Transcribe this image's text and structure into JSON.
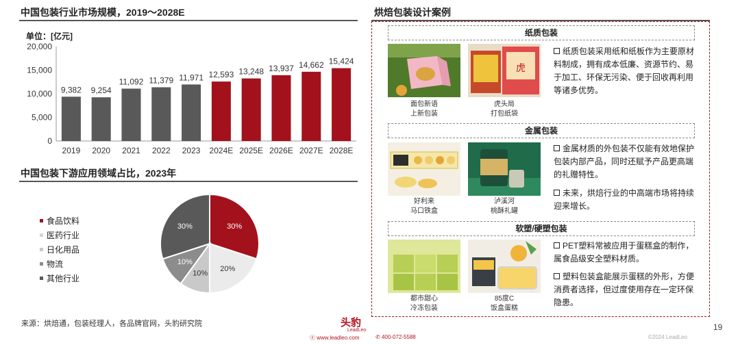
{
  "bar_section": {
    "title": "中国包装行业市场规模，2019～2028E",
    "unit": "单位：[亿元]"
  },
  "chart_data": [
    {
      "type": "bar",
      "title": "中国包装行业市场规模，2019～2028E",
      "ylabel": "单位：[亿元]",
      "categories": [
        "2019",
        "2020",
        "2021",
        "2022",
        "2023",
        "2024E",
        "2025E",
        "2026E",
        "2027E",
        "2028E"
      ],
      "values": [
        9382,
        9254,
        11092,
        11379,
        11971,
        12593,
        13248,
        13937,
        14662,
        15424
      ],
      "value_labels": [
        "9,382",
        "9,254",
        "11,092",
        "11,379",
        "11,971",
        "12,593",
        "13,248",
        "13,937",
        "14,662",
        "15,424"
      ],
      "ylim": [
        0,
        20000
      ],
      "yticks": [
        "0",
        "5,000",
        "10,000",
        "15,000",
        "20,000"
      ],
      "grid": false,
      "colors": {
        "actual": "#595959",
        "forecast": "#a3121c"
      },
      "actual_count": 5
    },
    {
      "type": "pie",
      "title": "中国包装下游应用领域占比，2023年",
      "labels": [
        "食品饮料",
        "医药行业",
        "日化用品",
        "物流",
        "其他行业"
      ],
      "values": [
        30,
        20,
        10,
        10,
        30
      ],
      "value_labels": [
        "30%",
        "20%",
        "10%",
        "10%",
        "30%"
      ],
      "colors": [
        "#a3121c",
        "#ebebeb",
        "#c9c9c9",
        "#8c8c8c",
        "#595959"
      ],
      "legend_position": "left"
    }
  ],
  "pie_section": {
    "title": "中国包装下游应用领域占比，2023年"
  },
  "source": "来源：烘焙通，包装经理人，各品牌官网，头豹研究院",
  "cases": {
    "title": "烘焙包装设计案例",
    "groups": [
      {
        "header": "纸质包装",
        "items": [
          {
            "caption1": "面包新语",
            "caption2": "上新包装"
          },
          {
            "caption1": "虎头局",
            "caption2": "打包纸袋"
          }
        ],
        "bullets": [
          "纸质包装采用纸和纸板作为主要原材料制成，拥有成本低廉、资源节约、易于加工、环保无污染、便于回收再利用等诸多优势。"
        ]
      },
      {
        "header": "金属包装",
        "items": [
          {
            "caption1": "好利来",
            "caption2": "马口铁盒"
          },
          {
            "caption1": "泸溪河",
            "caption2": "桃酥礼罐"
          }
        ],
        "bullets": [
          "金属材质的外包装不仅能有效地保护包装内部产品，同时还赋予产品更高端的礼赠特性。",
          "未来，烘焙行业的中高端市场将持续迎来增长。"
        ]
      },
      {
        "header": "软塑/硬塑包装",
        "items": [
          {
            "caption1": "都市甜心",
            "caption2": "冷冻包装"
          },
          {
            "caption1": "85度C",
            "caption2": "饭盒蛋糕"
          }
        ],
        "bullets": [
          "PET塑料常被应用于蛋糕盒的制作，属食品级安全塑料材质。",
          "塑料包装盒能展示蛋糕的外形，方便消费者选择，但过度使用存在一定环保隐患。"
        ]
      }
    ]
  },
  "footer": {
    "logo": "头豹",
    "logo_sub": "LeadLeo",
    "website": "www.leadleo.com",
    "phone": "400-072-5588",
    "copyright": "©2024 LeadLeo",
    "page": "19"
  }
}
